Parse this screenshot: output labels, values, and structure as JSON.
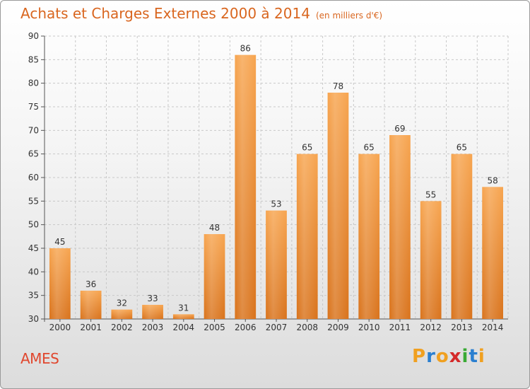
{
  "header": {
    "title": "Achats et Charges Externes 2000 à 2014",
    "subtitle": "(en milliers d'€)"
  },
  "footer": {
    "commune": "AMES",
    "logo": {
      "letters": [
        "P",
        "r",
        "o",
        "x",
        "i",
        "t",
        "i"
      ],
      "colors": [
        "#f0a020",
        "#2a7fd0",
        "#f0a020",
        "#d42a2a",
        "#3aaa35",
        "#2a7fd0",
        "#f0a020"
      ]
    }
  },
  "chart_data": {
    "type": "bar",
    "title": "Achats et Charges Externes 2000 à 2014",
    "subtitle": "(en milliers d'€)",
    "categories": [
      "2000",
      "2001",
      "2002",
      "2003",
      "2004",
      "2005",
      "2006",
      "2007",
      "2008",
      "2009",
      "2010",
      "2011",
      "2012",
      "2013",
      "2014"
    ],
    "values": [
      45,
      36,
      32,
      33,
      31,
      48,
      86,
      53,
      65,
      78,
      65,
      69,
      55,
      65,
      58
    ],
    "xlabel": "",
    "ylabel": "",
    "ylim": [
      30,
      90
    ],
    "yticks": [
      30,
      35,
      40,
      45,
      50,
      55,
      60,
      65,
      70,
      75,
      80,
      85,
      90
    ],
    "grid": true,
    "bar_color_top": "#f7a550",
    "bar_color_bottom": "#d9731c"
  }
}
